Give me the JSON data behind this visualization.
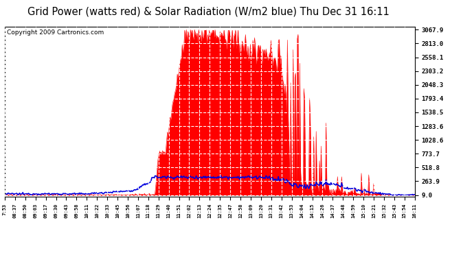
{
  "title": "Grid Power (watts red) & Solar Radiation (W/m2 blue) Thu Dec 31 16:11",
  "copyright": "Copyright 2009 Cartronics.com",
  "yticks": [
    9.0,
    263.9,
    518.8,
    773.7,
    1028.6,
    1283.6,
    1538.5,
    1793.4,
    2048.3,
    2303.2,
    2558.1,
    2813.0,
    3067.9
  ],
  "ymin": 9.0,
  "ymax": 3067.9,
  "bg_color": "#ffffff",
  "plot_bg_color": "#ffffff",
  "grid_color": "#cccccc",
  "red_color": "#ff0000",
  "blue_color": "#0000dd",
  "title_fontsize": 11,
  "copyright_fontsize": 7,
  "xtick_labels": [
    "7:53",
    "08:37",
    "08:50",
    "09:03",
    "09:17",
    "09:30",
    "09:43",
    "09:58",
    "10:11",
    "10:22",
    "10:33",
    "10:45",
    "10:56",
    "11:07",
    "11:18",
    "11:29",
    "11:40",
    "11:51",
    "12:02",
    "12:13",
    "12:24",
    "12:35",
    "12:47",
    "12:58",
    "13:09",
    "13:20",
    "13:31",
    "13:42",
    "13:53",
    "14:04",
    "14:15",
    "14:26",
    "14:37",
    "14:48",
    "14:59",
    "15:10",
    "15:21",
    "15:32",
    "15:43",
    "15:54",
    "16:11"
  ]
}
